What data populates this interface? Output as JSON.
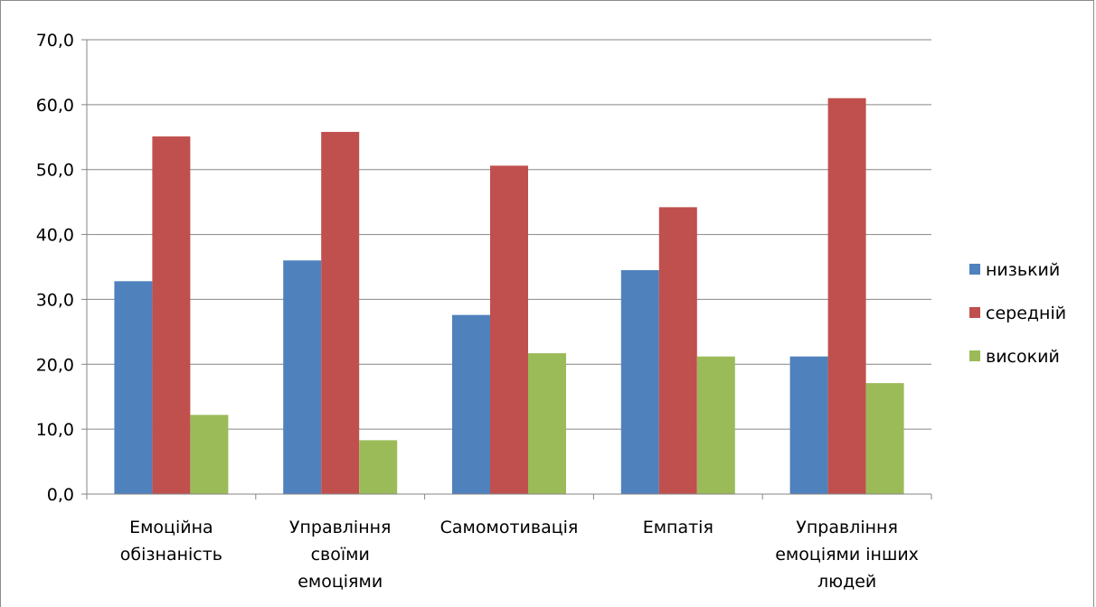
{
  "chart_data": {
    "type": "bar",
    "title": "",
    "xlabel": "",
    "ylabel": "",
    "ylim": [
      0,
      70
    ],
    "yticks": [
      "0,0",
      "10,0",
      "20,0",
      "30,0",
      "40,0",
      "50,0",
      "60,0",
      "70,0"
    ],
    "grid": true,
    "legend_position": "right",
    "categories": [
      [
        "Емоційна",
        "обізнаність"
      ],
      [
        "Управління",
        "своїми",
        "емоціями"
      ],
      [
        "Самомотивація"
      ],
      [
        "Емпатія"
      ],
      [
        "Управління",
        "емоціями інших",
        "людей"
      ]
    ],
    "series": [
      {
        "name": "низький",
        "color": "#4f81bd",
        "values": [
          32.8,
          36.0,
          27.6,
          34.5,
          21.2
        ]
      },
      {
        "name": "середній",
        "color": "#c0504d",
        "values": [
          55.1,
          55.8,
          50.6,
          44.2,
          61.0
        ]
      },
      {
        "name": "високий",
        "color": "#9bbb59",
        "values": [
          12.2,
          8.3,
          21.7,
          21.2,
          17.1
        ]
      }
    ]
  }
}
